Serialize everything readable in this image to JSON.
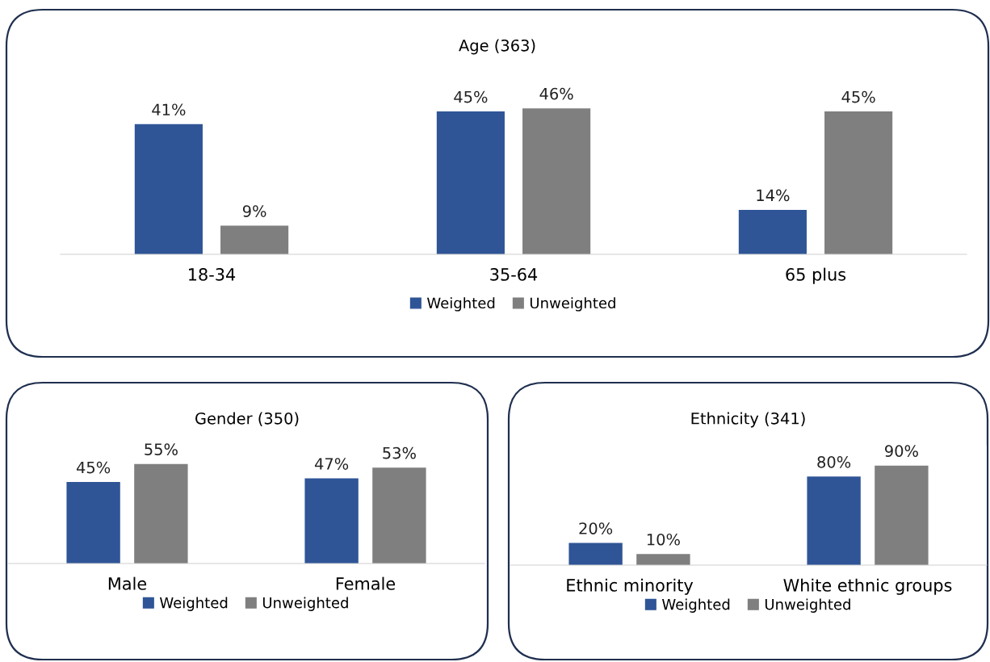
{
  "chart_data": [
    {
      "type": "bar",
      "title": "Age (363)",
      "categories": [
        "18-34",
        "35-64",
        "65 plus"
      ],
      "legend": "bottom",
      "series": [
        {
          "name": "Weighted",
          "color": "#2f5597",
          "values": [
            41,
            45,
            14
          ],
          "value_labels": [
            "41%",
            "45%",
            "14%"
          ]
        },
        {
          "name": "Unweighted",
          "color": "#7f7f7f",
          "values": [
            9,
            46,
            45
          ],
          "value_labels": [
            "9%",
            "46%",
            "45%"
          ]
        }
      ]
    },
    {
      "type": "bar",
      "title": "Gender (350)",
      "categories": [
        "Male",
        "Female"
      ],
      "legend": "bottom",
      "series": [
        {
          "name": "Weighted",
          "color": "#2f5597",
          "values": [
            45,
            47
          ],
          "value_labels": [
            "45%",
            "47%"
          ]
        },
        {
          "name": "Unweighted",
          "color": "#7f7f7f",
          "values": [
            55,
            53
          ],
          "value_labels": [
            "55%",
            "53%"
          ]
        }
      ]
    },
    {
      "type": "bar",
      "title": "Ethnicity (341)",
      "categories": [
        "Ethnic minority",
        "White ethnic groups"
      ],
      "legend": "bottom",
      "series": [
        {
          "name": "Weighted",
          "color": "#2f5597",
          "values": [
            20,
            80
          ],
          "value_labels": [
            "20%",
            "80%"
          ]
        },
        {
          "name": "Unweighted",
          "color": "#7f7f7f",
          "values": [
            10,
            90
          ],
          "value_labels": [
            "10%",
            "90%"
          ]
        }
      ]
    }
  ]
}
